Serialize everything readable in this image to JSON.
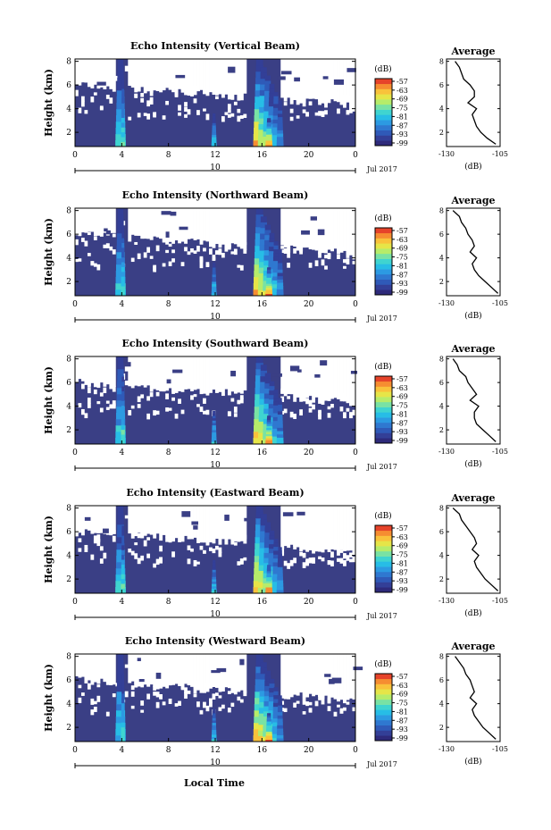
{
  "figure": {
    "xlabel": "Local Time",
    "date_label": "Jul 2017",
    "date_day": "10",
    "unit_label": "(dB)",
    "avg_title": "Average",
    "avg_xlabel": "(dB)"
  },
  "colors": {
    "background_fill": "#3a3f85",
    "missing": "#ffffff",
    "colormap": [
      "#2e2a7a",
      "#333f97",
      "#2f5ab8",
      "#2f78d0",
      "#2c9ae2",
      "#27bde6",
      "#3fd4d0",
      "#79e2a4",
      "#b6ec6a",
      "#e6e548",
      "#f9c23b",
      "#f68d31",
      "#e6432a"
    ]
  },
  "chart_data": [
    {
      "type": "heatmap",
      "title": "Echo Intensity (Vertical Beam)",
      "ylabel": "Height (km)",
      "x_ticks": [
        "0",
        "4",
        "8",
        "12",
        "16",
        "20",
        "0"
      ],
      "x_range": [
        0,
        24
      ],
      "y_ticks": [
        "2",
        "4",
        "6",
        "8"
      ],
      "y_range": [
        0.8,
        8.2
      ],
      "colorbar": {
        "label": "(dB)",
        "levels": [
          "-57",
          "-63",
          "-69",
          "-75",
          "-81",
          "-87",
          "-93",
          "-99"
        ]
      },
      "average": {
        "title": "Average",
        "xlabel": "(dB)",
        "x_ticks": [
          "-130",
          "-105"
        ],
        "x_range": [
          -130,
          -105
        ],
        "y_ticks": [
          "2",
          "4",
          "6",
          "8"
        ],
        "y_range": [
          0.8,
          8.2
        ],
        "profile": [
          [
            -107,
            1.0
          ],
          [
            -111,
            1.5
          ],
          [
            -114,
            2.0
          ],
          [
            -116,
            2.5
          ],
          [
            -117,
            3.0
          ],
          [
            -118,
            3.5
          ],
          [
            -116,
            4.0
          ],
          [
            -120,
            4.5
          ],
          [
            -117,
            5.0
          ],
          [
            -117,
            5.5
          ],
          [
            -119,
            6.0
          ],
          [
            -122,
            6.5
          ],
          [
            -123,
            7.0
          ],
          [
            -124,
            7.5
          ],
          [
            -126,
            8.0
          ]
        ]
      }
    },
    {
      "type": "heatmap",
      "title": "Echo Intensity (Northward Beam)",
      "ylabel": "Height (km)",
      "x_ticks": [
        "0",
        "4",
        "8",
        "12",
        "16",
        "20",
        "0"
      ],
      "x_range": [
        0,
        24
      ],
      "y_ticks": [
        "2",
        "4",
        "6",
        "8"
      ],
      "y_range": [
        0.8,
        8.2
      ],
      "colorbar": {
        "label": "(dB)",
        "levels": [
          "-57",
          "-63",
          "-69",
          "-75",
          "-81",
          "-87",
          "-93",
          "-99"
        ]
      },
      "average": {
        "title": "Average",
        "xlabel": "(dB)",
        "x_ticks": [
          "-130",
          "-105"
        ],
        "x_range": [
          -130,
          -105
        ],
        "y_ticks": [
          "2",
          "4",
          "6",
          "8"
        ],
        "y_range": [
          0.8,
          8.2
        ],
        "profile": [
          [
            -106,
            1.0
          ],
          [
            -109,
            1.5
          ],
          [
            -112,
            2.0
          ],
          [
            -115,
            2.5
          ],
          [
            -117,
            3.0
          ],
          [
            -118,
            3.5
          ],
          [
            -116,
            4.0
          ],
          [
            -119,
            4.5
          ],
          [
            -117,
            5.0
          ],
          [
            -118,
            5.5
          ],
          [
            -120,
            6.0
          ],
          [
            -121,
            6.5
          ],
          [
            -123,
            7.0
          ],
          [
            -124,
            7.5
          ],
          [
            -127,
            8.0
          ]
        ]
      }
    },
    {
      "type": "heatmap",
      "title": "Echo Intensity (Southward Beam)",
      "ylabel": "Height (km)",
      "x_ticks": [
        "0",
        "4",
        "8",
        "12",
        "16",
        "20",
        "0"
      ],
      "x_range": [
        0,
        24
      ],
      "y_ticks": [
        "2",
        "4",
        "6",
        "8"
      ],
      "y_range": [
        0.8,
        8.2
      ],
      "colorbar": {
        "label": "(dB)",
        "levels": [
          "-57",
          "-63",
          "-69",
          "-75",
          "-81",
          "-87",
          "-93",
          "-99"
        ]
      },
      "average": {
        "title": "Average",
        "xlabel": "(dB)",
        "x_ticks": [
          "-130",
          "-105"
        ],
        "x_range": [
          -130,
          -105
        ],
        "y_ticks": [
          "2",
          "4",
          "6",
          "8"
        ],
        "y_range": [
          0.8,
          8.2
        ],
        "profile": [
          [
            -107,
            1.0
          ],
          [
            -110,
            1.5
          ],
          [
            -113,
            2.0
          ],
          [
            -116,
            2.5
          ],
          [
            -117,
            3.0
          ],
          [
            -117,
            3.5
          ],
          [
            -115,
            4.0
          ],
          [
            -119,
            4.5
          ],
          [
            -116,
            5.0
          ],
          [
            -118,
            5.5
          ],
          [
            -120,
            6.0
          ],
          [
            -121,
            6.5
          ],
          [
            -124,
            7.0
          ],
          [
            -125,
            7.5
          ],
          [
            -127,
            8.0
          ]
        ]
      }
    },
    {
      "type": "heatmap",
      "title": "Echo Intensity (Eastward Beam)",
      "ylabel": "Height (km)",
      "x_ticks": [
        "0",
        "4",
        "8",
        "12",
        "16",
        "20",
        "0"
      ],
      "x_range": [
        0,
        24
      ],
      "y_ticks": [
        "2",
        "4",
        "6",
        "8"
      ],
      "y_range": [
        0.8,
        8.2
      ],
      "colorbar": {
        "label": "(dB)",
        "levels": [
          "-57",
          "-63",
          "-69",
          "-75",
          "-81",
          "-87",
          "-93",
          "-99"
        ]
      },
      "average": {
        "title": "Average",
        "xlabel": "(dB)",
        "x_ticks": [
          "-130",
          "-105"
        ],
        "x_range": [
          -130,
          -105
        ],
        "y_ticks": [
          "2",
          "4",
          "6",
          "8"
        ],
        "y_range": [
          0.8,
          8.2
        ],
        "profile": [
          [
            -106,
            1.0
          ],
          [
            -109,
            1.5
          ],
          [
            -112,
            2.0
          ],
          [
            -114,
            2.5
          ],
          [
            -116,
            3.0
          ],
          [
            -117,
            3.5
          ],
          [
            -115,
            4.0
          ],
          [
            -118,
            4.5
          ],
          [
            -116,
            5.0
          ],
          [
            -117,
            5.5
          ],
          [
            -119,
            6.0
          ],
          [
            -121,
            6.5
          ],
          [
            -123,
            7.0
          ],
          [
            -124,
            7.5
          ],
          [
            -127,
            8.0
          ]
        ]
      }
    },
    {
      "type": "heatmap",
      "title": "Echo Intensity (Westward Beam)",
      "ylabel": "Height (km)",
      "x_ticks": [
        "0",
        "4",
        "8",
        "12",
        "16",
        "20",
        "0"
      ],
      "x_range": [
        0,
        24
      ],
      "y_ticks": [
        "2",
        "4",
        "6",
        "8"
      ],
      "y_range": [
        0.8,
        8.2
      ],
      "colorbar": {
        "label": "(dB)",
        "levels": [
          "-57",
          "-63",
          "-69",
          "-75",
          "-81",
          "-87",
          "-93",
          "-99"
        ]
      },
      "average": {
        "title": "Average",
        "xlabel": "(dB)",
        "x_ticks": [
          "-130",
          "-105"
        ],
        "x_range": [
          -130,
          -105
        ],
        "y_ticks": [
          "2",
          "4",
          "6",
          "8"
        ],
        "y_range": [
          0.8,
          8.2
        ],
        "profile": [
          [
            -107,
            1.0
          ],
          [
            -110,
            1.5
          ],
          [
            -113,
            2.0
          ],
          [
            -115,
            2.5
          ],
          [
            -117,
            3.0
          ],
          [
            -118,
            3.5
          ],
          [
            -116,
            4.0
          ],
          [
            -119,
            4.5
          ],
          [
            -117,
            5.0
          ],
          [
            -118,
            5.5
          ],
          [
            -119,
            6.0
          ],
          [
            -121,
            6.5
          ],
          [
            -122,
            7.0
          ],
          [
            -124,
            7.5
          ],
          [
            -126,
            8.0
          ]
        ]
      }
    }
  ]
}
